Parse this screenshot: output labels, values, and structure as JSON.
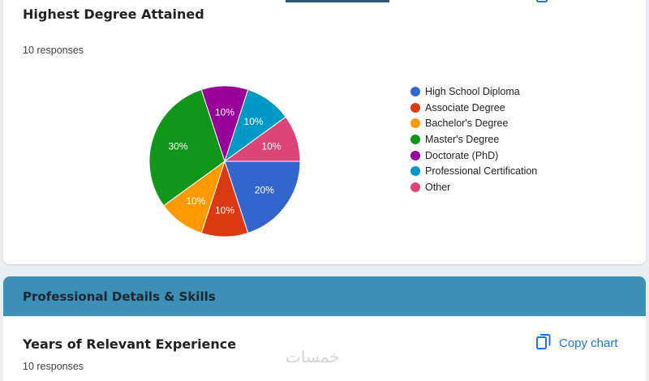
{
  "question1": {
    "title": "Highest Degree Attained",
    "responses": "10 responses"
  },
  "chart_data": {
    "type": "pie",
    "categories": [
      "High School Diploma",
      "Associate Degree",
      "Bachelor's Degree",
      "Master's Degree",
      "Doctorate (PhD)",
      "Professional Certification",
      "Other"
    ],
    "values": [
      20,
      10,
      10,
      30,
      10,
      10,
      10
    ],
    "labels": [
      "20%",
      "10%",
      "10%",
      "30%",
      "10%",
      "10%",
      "10%"
    ],
    "colors": [
      "#3366cc",
      "#dc3912",
      "#ff9900",
      "#109618",
      "#990099",
      "#0099c6",
      "#dd4477"
    ],
    "legend_position": "right"
  },
  "section": {
    "title": "Professional Details & Skills",
    "color": "#3e8fb5"
  },
  "question2": {
    "title": "Years of Relevant Experience",
    "responses": "10 responses",
    "copy_label": "Copy chart"
  },
  "watermark": {
    "text": "خمسات"
  }
}
